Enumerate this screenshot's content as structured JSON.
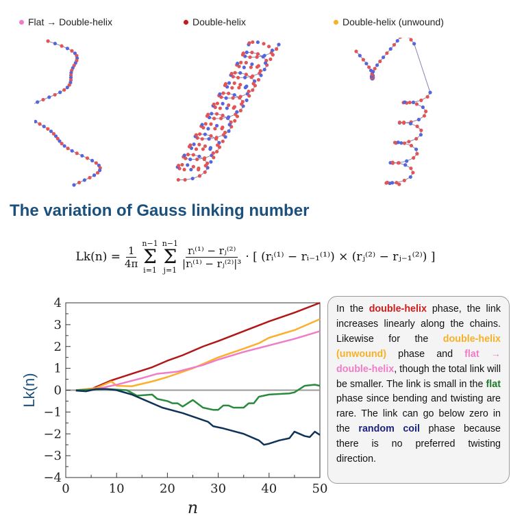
{
  "legend": [
    {
      "label": "Flat → Double-helix",
      "color": "#f07cc8"
    },
    {
      "label": "Double-helix",
      "color": "#c81a1a"
    },
    {
      "label": "Double-helix (unwound)",
      "color": "#f7b127"
    }
  ],
  "title": "The variation of Gauss linking number",
  "formula": {
    "lhs": "Lk(n) =",
    "coef_num": "1",
    "coef_den": "4π",
    "sum1_top": "n−1",
    "sum1_bot": "i=1",
    "sum2_top": "n−1",
    "sum2_bot": "j=1",
    "frac_num": "rᵢ⁽¹⁾ − rⱼ⁽²⁾",
    "frac_den": "|rᵢ⁽¹⁾ − rⱼ⁽²⁾|³",
    "rhs": "· [ (rᵢ⁽¹⁾ − rᵢ₋₁⁽¹⁾) × (rⱼ⁽²⁾ − rⱼ₋₁⁽²⁾) ]"
  },
  "note": {
    "parts": [
      {
        "t": "In the ",
        "c": ""
      },
      {
        "t": "double-helix",
        "c": "#d01c1c"
      },
      {
        "t": " phase, the link increases linearly along the chains. Likewise for the ",
        "c": ""
      },
      {
        "t": "double-helix (unwound)",
        "c": "#f7b127"
      },
      {
        "t": " phase and ",
        "c": ""
      },
      {
        "t": "flat → double-helix",
        "c": "#f07cc8"
      },
      {
        "t": ", though the total link will be smaller. The link is small in the ",
        "c": ""
      },
      {
        "t": "flat",
        "c": "#1f7a2a"
      },
      {
        "t": " phase since bending and twisting are rare. The link can go below zero in the ",
        "c": ""
      },
      {
        "t": "random coil",
        "c": "#1a237e"
      },
      {
        "t": " phase because there is no preferred twisting direction.",
        "c": ""
      }
    ]
  },
  "chart_data": {
    "type": "line",
    "xlabel": "n",
    "ylabel": "Lk(n)",
    "xlim": [
      0,
      50
    ],
    "ylim": [
      -4,
      4
    ],
    "xticks": [
      "0",
      "10",
      "20",
      "30",
      "40",
      "50"
    ],
    "yticks": [
      "4",
      "3",
      "2",
      "1",
      "0",
      "−1",
      "−2",
      "−3",
      "−4"
    ],
    "series": [
      {
        "name": "double-helix",
        "color": "#b01818",
        "points": [
          [
            2,
            0
          ],
          [
            5,
            0.05
          ],
          [
            9,
            0.45
          ],
          [
            13,
            0.75
          ],
          [
            17,
            1.05
          ],
          [
            20,
            1.35
          ],
          [
            23,
            1.6
          ],
          [
            27,
            2.0
          ],
          [
            30,
            2.25
          ],
          [
            35,
            2.7
          ],
          [
            40,
            3.15
          ],
          [
            45,
            3.55
          ],
          [
            50,
            4.0
          ]
        ]
      },
      {
        "name": "double-helix (unwound)",
        "color": "#fbb02d",
        "points": [
          [
            2,
            0
          ],
          [
            6,
            0.1
          ],
          [
            9,
            0.4
          ],
          [
            10,
            0.2
          ],
          [
            13,
            0.18
          ],
          [
            17,
            0.4
          ],
          [
            20,
            0.6
          ],
          [
            25,
            1.0
          ],
          [
            30,
            1.5
          ],
          [
            35,
            1.9
          ],
          [
            38,
            2.15
          ],
          [
            40,
            2.4
          ],
          [
            45,
            2.75
          ],
          [
            50,
            3.25
          ]
        ]
      },
      {
        "name": "flat → double-helix",
        "color": "#f07cc8",
        "points": [
          [
            2,
            0
          ],
          [
            6,
            0.05
          ],
          [
            10,
            0.25
          ],
          [
            15,
            0.55
          ],
          [
            18,
            0.75
          ],
          [
            22,
            0.85
          ],
          [
            27,
            1.15
          ],
          [
            30,
            1.4
          ],
          [
            35,
            1.75
          ],
          [
            40,
            2.05
          ],
          [
            45,
            2.35
          ],
          [
            50,
            2.7
          ]
        ]
      },
      {
        "name": "flat",
        "color": "#2a8a3c",
        "points": [
          [
            2,
            0
          ],
          [
            8,
            0.05
          ],
          [
            12,
            0
          ],
          [
            14,
            -0.25
          ],
          [
            17,
            -0.2
          ],
          [
            18,
            -0.4
          ],
          [
            20,
            -0.5
          ],
          [
            21,
            -0.6
          ],
          [
            22,
            -0.6
          ],
          [
            23,
            -0.75
          ],
          [
            25,
            -0.45
          ],
          [
            27,
            -0.8
          ],
          [
            29,
            -0.9
          ],
          [
            30,
            -0.9
          ],
          [
            31,
            -0.7
          ],
          [
            32,
            -0.7
          ],
          [
            33,
            -0.8
          ],
          [
            35,
            -0.8
          ],
          [
            36,
            -0.6
          ],
          [
            37,
            -0.6
          ],
          [
            38,
            -0.3
          ],
          [
            40,
            -0.2
          ],
          [
            44,
            -0.15
          ],
          [
            45,
            -0.1
          ],
          [
            47,
            0.2
          ],
          [
            49,
            0.25
          ],
          [
            50,
            0.2
          ]
        ]
      },
      {
        "name": "random coil",
        "color": "#0f3358",
        "points": [
          [
            2,
            -0.02
          ],
          [
            4,
            -0.05
          ],
          [
            6,
            0.05
          ],
          [
            8,
            0.05
          ],
          [
            10,
            0
          ],
          [
            13,
            -0.2
          ],
          [
            16,
            -0.5
          ],
          [
            19,
            -0.8
          ],
          [
            23,
            -1.05
          ],
          [
            28,
            -1.45
          ],
          [
            29,
            -1.65
          ],
          [
            31,
            -1.75
          ],
          [
            35,
            -2.0
          ],
          [
            38,
            -2.3
          ],
          [
            39,
            -2.5
          ],
          [
            40,
            -2.45
          ],
          [
            42,
            -2.3
          ],
          [
            44,
            -2.2
          ],
          [
            45,
            -1.9
          ],
          [
            47,
            -2.1
          ],
          [
            48,
            -2.15
          ],
          [
            49,
            -1.9
          ],
          [
            50,
            -2.05
          ]
        ]
      }
    ]
  }
}
